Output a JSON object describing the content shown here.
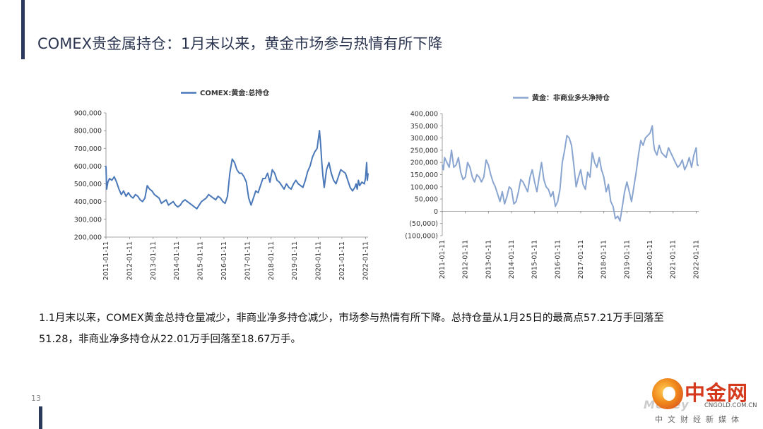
{
  "slide": {
    "title": "COMEX贵金属持仓：1月末以来，黄金市场参与热情有所下降",
    "body_line1": "1.1月末以来，COMEX黄金总持仓量减少，非商业净多持仓减少，市场参与热情有所下降。总持仓量从1月25日的最高点57.21万手回落至",
    "body_line2": "51.28，非商业净多持仓从22.01万手回落至18.67万手。",
    "page_number": "13"
  },
  "logo": {
    "name": "中金网",
    "domain": "CNGOLD.COM.CN",
    "tagline": "中文财经新媒体",
    "watermark": "Money"
  },
  "colors": {
    "accent_bar": "#2b3a5c",
    "left_series": "#4a78b8",
    "right_series": "#8aa6d0",
    "negative_label": "#e03030",
    "logo_red": "#d63a1e"
  },
  "chart_data": [
    {
      "type": "line",
      "legend": "COMEX:黄金:总持仓",
      "legend_position": "top-center",
      "grid": false,
      "ylim": [
        200000,
        900000
      ],
      "yticks": [
        200000,
        300000,
        400000,
        500000,
        600000,
        700000,
        800000,
        900000
      ],
      "ytick_labels": [
        "200,000",
        "300,000",
        "400,000",
        "500,000",
        "600,000",
        "700,000",
        "800,000",
        "900,000"
      ],
      "xlim": [
        2011.0,
        2022.11
      ],
      "xticks": [
        2011,
        2012,
        2013,
        2014,
        2015,
        2016,
        2017,
        2018,
        2019,
        2020,
        2021,
        2022
      ],
      "xtick_labels": [
        "2011-01-11",
        "2012-01-11",
        "2013-01-11",
        "2014-01-11",
        "2015-01-11",
        "2016-01-11",
        "2017-01-11",
        "2018-01-11",
        "2019-01-11",
        "2020-01-11",
        "2021-01-11",
        "2022-01-11"
      ],
      "series": [
        {
          "x": [
            2011.0,
            2011.03,
            2011.08,
            2011.15,
            2011.25,
            2011.35,
            2011.45,
            2011.55,
            2011.65,
            2011.75,
            2011.85,
            2011.95,
            2012.05,
            2012.15,
            2012.25,
            2012.35,
            2012.45,
            2012.55,
            2012.65,
            2012.75,
            2012.85,
            2012.95,
            2013.05,
            2013.15,
            2013.25,
            2013.35,
            2013.45,
            2013.55,
            2013.65,
            2013.75,
            2013.85,
            2013.95,
            2014.05,
            2014.15,
            2014.25,
            2014.35,
            2014.45,
            2014.55,
            2014.65,
            2014.75,
            2014.85,
            2014.95,
            2015.05,
            2015.15,
            2015.25,
            2015.35,
            2015.45,
            2015.55,
            2015.65,
            2015.75,
            2015.85,
            2015.95,
            2016.05,
            2016.15,
            2016.25,
            2016.35,
            2016.45,
            2016.55,
            2016.65,
            2016.75,
            2016.85,
            2016.95,
            2017.05,
            2017.15,
            2017.25,
            2017.35,
            2017.45,
            2017.55,
            2017.65,
            2017.75,
            2017.85,
            2017.95,
            2018.05,
            2018.15,
            2018.25,
            2018.35,
            2018.45,
            2018.55,
            2018.65,
            2018.75,
            2018.85,
            2018.95,
            2019.05,
            2019.15,
            2019.25,
            2019.35,
            2019.45,
            2019.55,
            2019.65,
            2019.75,
            2019.85,
            2019.95,
            2020.0,
            2020.05,
            2020.1,
            2020.15,
            2020.2,
            2020.25,
            2020.35,
            2020.45,
            2020.55,
            2020.65,
            2020.75,
            2020.85,
            2020.95,
            2021.05,
            2021.15,
            2021.25,
            2021.35,
            2021.45,
            2021.55,
            2021.6,
            2021.65,
            2021.7,
            2021.75,
            2021.85,
            2021.95,
            2022.0,
            2022.05,
            2022.08,
            2022.11
          ],
          "y": [
            600000,
            470000,
            510000,
            530000,
            520000,
            540000,
            510000,
            470000,
            440000,
            460000,
            430000,
            450000,
            430000,
            420000,
            440000,
            430000,
            410000,
            400000,
            420000,
            490000,
            470000,
            460000,
            440000,
            430000,
            420000,
            390000,
            400000,
            410000,
            380000,
            390000,
            400000,
            380000,
            370000,
            380000,
            400000,
            410000,
            400000,
            390000,
            380000,
            370000,
            360000,
            380000,
            400000,
            410000,
            420000,
            440000,
            430000,
            420000,
            410000,
            430000,
            420000,
            400000,
            390000,
            430000,
            560000,
            640000,
            620000,
            580000,
            560000,
            560000,
            540000,
            510000,
            420000,
            380000,
            420000,
            460000,
            450000,
            490000,
            530000,
            530000,
            560000,
            510000,
            580000,
            560000,
            520000,
            510000,
            490000,
            470000,
            500000,
            480000,
            470000,
            500000,
            520000,
            500000,
            490000,
            480000,
            520000,
            570000,
            600000,
            650000,
            680000,
            700000,
            750000,
            800000,
            720000,
            620000,
            540000,
            480000,
            580000,
            620000,
            560000,
            520000,
            500000,
            540000,
            580000,
            570000,
            560000,
            520000,
            480000,
            460000,
            480000,
            500000,
            470000,
            520000,
            490000,
            510000,
            500000,
            530000,
            620000,
            520000,
            560000
          ]
        }
      ]
    },
    {
      "type": "line",
      "legend": "黄金：非商业多头净持仓",
      "legend_position": "top-center",
      "grid": false,
      "ylim": [
        -100000,
        400000
      ],
      "yticks": [
        -100000,
        -50000,
        0,
        50000,
        100000,
        150000,
        200000,
        250000,
        300000,
        350000,
        400000
      ],
      "ytick_labels": [
        "(100,000)",
        "(50,000)",
        "0",
        "50,000",
        "100,000",
        "150,000",
        "200,000",
        "250,000",
        "300,000",
        "350,000",
        "400,000"
      ],
      "xlim": [
        2011.0,
        2022.11
      ],
      "xticks": [
        2011,
        2012,
        2013,
        2014,
        2015,
        2016,
        2017,
        2018,
        2019,
        2020,
        2021,
        2022
      ],
      "xtick_labels": [
        "2011-01-11",
        "2012-01-11",
        "2013-01-11",
        "2014-01-11",
        "2015-01-11",
        "2016-01-11",
        "2017-01-11",
        "2018-01-11",
        "2019-01-11",
        "2020-01-11",
        "2021-01-11",
        "2022-01-11"
      ],
      "series": [
        {
          "x": [
            2011.0,
            2011.05,
            2011.1,
            2011.2,
            2011.3,
            2011.4,
            2011.5,
            2011.6,
            2011.7,
            2011.8,
            2011.9,
            2012.0,
            2012.1,
            2012.2,
            2012.3,
            2012.4,
            2012.5,
            2012.6,
            2012.7,
            2012.8,
            2012.9,
            2013.0,
            2013.1,
            2013.2,
            2013.3,
            2013.4,
            2013.5,
            2013.6,
            2013.7,
            2013.8,
            2013.9,
            2014.0,
            2014.1,
            2014.2,
            2014.3,
            2014.4,
            2014.5,
            2014.6,
            2014.7,
            2014.8,
            2014.9,
            2015.0,
            2015.1,
            2015.2,
            2015.3,
            2015.4,
            2015.5,
            2015.6,
            2015.7,
            2015.8,
            2015.9,
            2016.0,
            2016.1,
            2016.2,
            2016.3,
            2016.4,
            2016.5,
            2016.6,
            2016.7,
            2016.8,
            2016.9,
            2017.0,
            2017.1,
            2017.2,
            2017.3,
            2017.4,
            2017.5,
            2017.6,
            2017.7,
            2017.8,
            2017.9,
            2018.0,
            2018.1,
            2018.2,
            2018.3,
            2018.4,
            2018.5,
            2018.6,
            2018.7,
            2018.8,
            2018.9,
            2019.0,
            2019.1,
            2019.2,
            2019.3,
            2019.4,
            2019.5,
            2019.6,
            2019.7,
            2019.8,
            2019.9,
            2020.0,
            2020.1,
            2020.15,
            2020.2,
            2020.3,
            2020.4,
            2020.5,
            2020.6,
            2020.7,
            2020.8,
            2020.9,
            2021.0,
            2021.1,
            2021.2,
            2021.3,
            2021.4,
            2021.5,
            2021.6,
            2021.7,
            2021.8,
            2021.9,
            2022.0,
            2022.05,
            2022.11
          ],
          "y": [
            190000,
            170000,
            220000,
            200000,
            180000,
            250000,
            180000,
            190000,
            220000,
            160000,
            130000,
            140000,
            200000,
            180000,
            140000,
            120000,
            150000,
            140000,
            120000,
            140000,
            210000,
            190000,
            150000,
            120000,
            100000,
            70000,
            40000,
            80000,
            30000,
            60000,
            100000,
            90000,
            30000,
            40000,
            80000,
            130000,
            120000,
            100000,
            80000,
            140000,
            170000,
            120000,
            80000,
            140000,
            200000,
            130000,
            100000,
            90000,
            60000,
            80000,
            20000,
            40000,
            90000,
            200000,
            250000,
            310000,
            300000,
            270000,
            190000,
            100000,
            140000,
            170000,
            110000,
            90000,
            160000,
            140000,
            240000,
            200000,
            180000,
            220000,
            170000,
            140000,
            80000,
            110000,
            40000,
            20000,
            -30000,
            -20000,
            -40000,
            20000,
            80000,
            120000,
            80000,
            40000,
            100000,
            160000,
            230000,
            290000,
            270000,
            300000,
            310000,
            320000,
            350000,
            280000,
            250000,
            230000,
            270000,
            240000,
            230000,
            220000,
            260000,
            240000,
            220000,
            200000,
            180000,
            190000,
            210000,
            170000,
            190000,
            220000,
            180000,
            230000,
            260000,
            190000,
            187000
          ]
        }
      ]
    }
  ]
}
